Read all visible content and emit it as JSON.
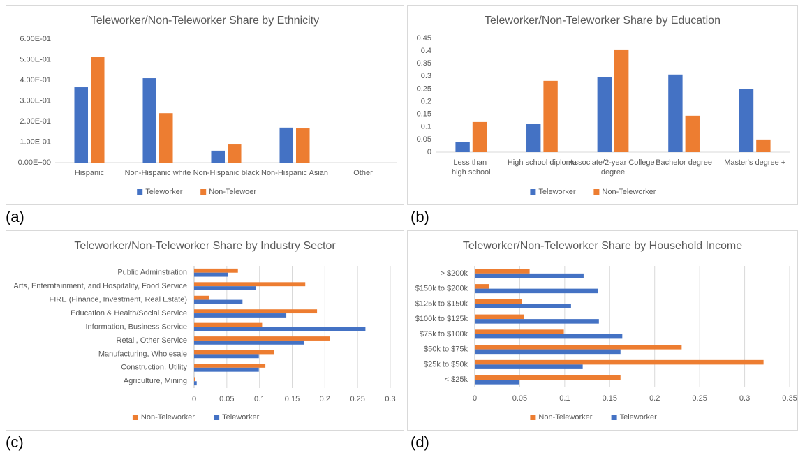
{
  "chart_data": [
    {
      "type": "bar",
      "label": "(a)",
      "title": "Teleworker/Non-Teleworker  Share by Ethnicity",
      "categories": [
        "Hispanic",
        "Non-Hispanic white",
        "Non-Hispanic black",
        "Non-Hispanic Asian",
        "Other"
      ],
      "series": [
        {
          "name": "Teleworker",
          "color": "#4472c4",
          "values": [
            0.366,
            0.41,
            0.058,
            0.17,
            0
          ]
        },
        {
          "name": "Non-Telewoer",
          "color": "#ed7d31",
          "values": [
            0.515,
            0.24,
            0.088,
            0.166,
            0
          ]
        }
      ],
      "ylim": [
        0,
        0.6
      ],
      "yticks": [
        {
          "value": 0,
          "label": "0.00E+00"
        },
        {
          "value": 0.1,
          "label": "1.00E-01"
        },
        {
          "value": 0.2,
          "label": "2.00E-01"
        },
        {
          "value": 0.3,
          "label": "3.00E-01"
        },
        {
          "value": 0.4,
          "label": "4.00E-01"
        },
        {
          "value": 0.5,
          "label": "5.00E-01"
        },
        {
          "value": 0.6,
          "label": "6.00E-01"
        }
      ],
      "grid": false,
      "legend": "bottom"
    },
    {
      "type": "bar",
      "label": "(b)",
      "title": "Teleworker/Non-Teleworker  Share by Education",
      "categories": [
        "Less than high school",
        "High school diploma",
        "Associate/2-year College degree",
        "Bachelor degree",
        "Master's degree +"
      ],
      "series": [
        {
          "name": "Teleworker",
          "color": "#4472c4",
          "values": [
            0.039,
            0.113,
            0.298,
            0.307,
            0.249
          ]
        },
        {
          "name": "Non-Teleworker",
          "color": "#ed7d31",
          "values": [
            0.119,
            0.282,
            0.406,
            0.144,
            0.05
          ]
        }
      ],
      "ylim": [
        0,
        0.45
      ],
      "yticks": [
        0,
        0.05,
        0.1,
        0.15,
        0.2,
        0.25,
        0.3,
        0.35,
        0.4,
        0.45
      ],
      "grid": false,
      "legend": "bottom"
    },
    {
      "type": "barh",
      "label": "(c)",
      "title": "Teleworker/Non-Teleworker  Share by Industry Sector",
      "categories": [
        "Public Adminstration",
        "Arts, Enterntainment, and Hospitality, Food Service",
        "FIRE (Finance, Investment, Real Estate)",
        "Education & Health/Social Service",
        "Information, Business Service",
        "Retail, Other Service",
        "Manufacturing, Wholesale",
        "Construction, Utility",
        "Agriculture, Mining"
      ],
      "series": [
        {
          "name": "Non-Teleworker",
          "color": "#ed7d31",
          "values": [
            0.067,
            0.17,
            0.023,
            0.188,
            0.104,
            0.208,
            0.122,
            0.109,
            0.002
          ]
        },
        {
          "name": "Teleworker",
          "color": "#4472c4",
          "values": [
            0.052,
            0.095,
            0.074,
            0.141,
            0.262,
            0.168,
            0.099,
            0.099,
            0.004
          ]
        }
      ],
      "xlim": [
        0,
        0.3
      ],
      "xticks": [
        0,
        0.05,
        0.1,
        0.15,
        0.2,
        0.25,
        0.3
      ],
      "grid": true,
      "legend": "bottom"
    },
    {
      "type": "barh",
      "label": "(d)",
      "title": "Teleworker/Non-Teleworker  Share by Household Income",
      "categories": [
        "> $200k",
        "$150k to $200k",
        "$125k to $150k",
        "$100k to $125k",
        "$75k to $100k",
        "$50k to $75k",
        "$25k to $50k",
        "< $25k"
      ],
      "series": [
        {
          "name": "Non-Teleworker",
          "color": "#ed7d31",
          "values": [
            0.061,
            0.016,
            0.052,
            0.055,
            0.099,
            0.23,
            0.321,
            0.162
          ]
        },
        {
          "name": "Teleworker",
          "color": "#4472c4",
          "values": [
            0.121,
            0.137,
            0.107,
            0.138,
            0.164,
            0.162,
            0.12,
            0.049
          ]
        }
      ],
      "xlim": [
        0,
        0.35
      ],
      "xticks": [
        0,
        0.05,
        0.1,
        0.15,
        0.2,
        0.25,
        0.3,
        0.35
      ],
      "grid": true,
      "legend": "bottom"
    }
  ]
}
